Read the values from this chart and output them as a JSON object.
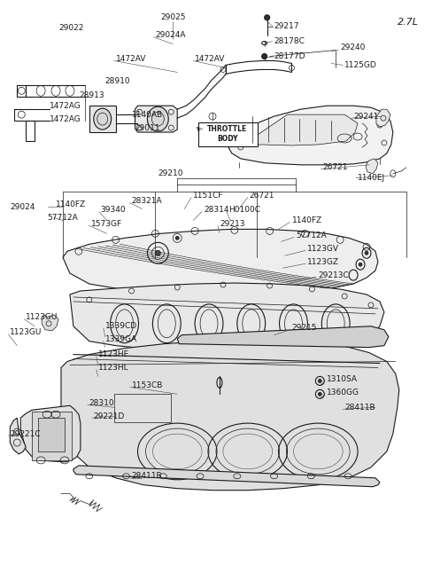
{
  "version_label": "2.7L",
  "bg_color": "#ffffff",
  "line_color": "#1a1a1a",
  "text_color": "#1a1a1a",
  "fig_w": 4.8,
  "fig_h": 6.55,
  "dpi": 100,
  "labels": [
    [
      "29217",
      310,
      28,
      "left"
    ],
    [
      "28178C",
      310,
      45,
      "left"
    ],
    [
      "28177D",
      310,
      62,
      "left"
    ],
    [
      "29240",
      385,
      52,
      "left"
    ],
    [
      "1125GD",
      390,
      72,
      "left"
    ],
    [
      "29241",
      400,
      130,
      "left"
    ],
    [
      "26721",
      365,
      188,
      "left"
    ],
    [
      "1140EJ",
      405,
      200,
      "left"
    ],
    [
      "29025",
      195,
      18,
      "center"
    ],
    [
      "29024A",
      175,
      38,
      "left"
    ],
    [
      "1472AV",
      130,
      65,
      "left"
    ],
    [
      "1472AV",
      220,
      65,
      "left"
    ],
    [
      "28910",
      118,
      90,
      "left"
    ],
    [
      "28913",
      88,
      106,
      "left"
    ],
    [
      "1472AG",
      55,
      118,
      "left"
    ],
    [
      "1472AG",
      55,
      133,
      "left"
    ],
    [
      "29022",
      65,
      30,
      "left"
    ],
    [
      "1140AB",
      148,
      128,
      "left"
    ],
    [
      "29011",
      152,
      143,
      "left"
    ],
    [
      "29210",
      178,
      195,
      "left"
    ],
    [
      "29024",
      10,
      233,
      "left"
    ],
    [
      "1140FZ",
      62,
      230,
      "left"
    ],
    [
      "57712A",
      52,
      245,
      "left"
    ],
    [
      "39340",
      113,
      236,
      "left"
    ],
    [
      "1573GF",
      102,
      252,
      "left"
    ],
    [
      "28321A",
      148,
      226,
      "left"
    ],
    [
      "1151CF",
      218,
      220,
      "left"
    ],
    [
      "28314",
      230,
      236,
      "left"
    ],
    [
      "26721",
      282,
      220,
      "left"
    ],
    [
      "H0100C",
      258,
      236,
      "left"
    ],
    [
      "29213",
      248,
      252,
      "left"
    ],
    [
      "1140FZ",
      330,
      248,
      "left"
    ],
    [
      "57712A",
      335,
      265,
      "left"
    ],
    [
      "1123GV",
      348,
      280,
      "left"
    ],
    [
      "1123GZ",
      348,
      295,
      "left"
    ],
    [
      "29213C",
      360,
      310,
      "left"
    ],
    [
      "1123GU",
      28,
      358,
      "left"
    ],
    [
      "1123GU",
      10,
      375,
      "left"
    ],
    [
      "1339CD",
      118,
      368,
      "left"
    ],
    [
      "1339GA",
      118,
      383,
      "left"
    ],
    [
      "1123HE",
      110,
      400,
      "left"
    ],
    [
      "1123HL",
      110,
      415,
      "left"
    ],
    [
      "29215",
      330,
      370,
      "left"
    ],
    [
      "1310SA",
      370,
      428,
      "left"
    ],
    [
      "1360GG",
      370,
      443,
      "left"
    ],
    [
      "28411B",
      390,
      460,
      "left"
    ],
    [
      "1153CB",
      148,
      435,
      "left"
    ],
    [
      "28310",
      100,
      455,
      "left"
    ],
    [
      "29221D",
      105,
      470,
      "left"
    ],
    [
      "29221C",
      10,
      490,
      "left"
    ],
    [
      "28411B",
      148,
      538,
      "left"
    ]
  ]
}
